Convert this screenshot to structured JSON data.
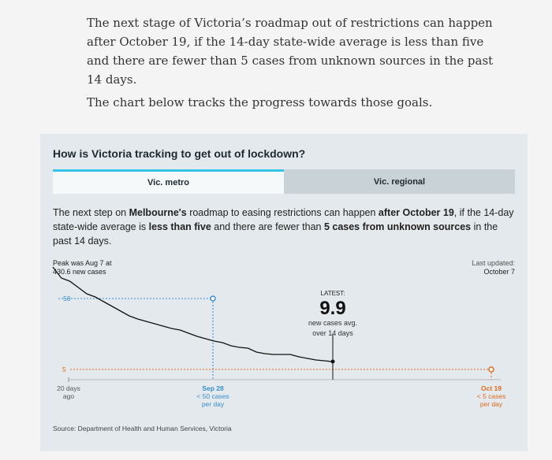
{
  "article": {
    "p1": "The next stage of Victoria’s roadmap out of restrictions can happen after October 19, if the 14-day state-wide average is less than five and there are fewer than 5 cases from unknown sources in the past 14 days.",
    "p2": "The chart below tracks the progress towards those goals."
  },
  "widget": {
    "title": "How is Victoria tracking to get out of lockdown?",
    "tabs": [
      {
        "label": "Vic. metro",
        "active": true
      },
      {
        "label": "Vic. regional",
        "active": false
      }
    ],
    "desc": {
      "t1": "The next step on ",
      "b1": "Melbourne's",
      "t2": " roadmap to easing restrictions can happen ",
      "b2": "after October 19",
      "t3": ", if the 14-day state-wide average is ",
      "b3": "less than five",
      "t4": " and there are fewer than ",
      "b4": "5 cases from unknown sources",
      "t5": " in the past 14 days."
    },
    "peak_note": [
      "Peak was Aug 7 at",
      "430.6 new cases"
    ],
    "updated_note": [
      "Last updated:",
      "October 7"
    ],
    "source": "Source: Department of Health and Human Services, Victoria",
    "colors": {
      "accent": "#35c3e8",
      "target50": "#3a8fd0",
      "target5": "#e06a1c",
      "line": "#111111"
    }
  },
  "chart_data": {
    "type": "line",
    "series": [
      {
        "values": [
          70,
          63,
          61,
          57,
          53,
          51,
          48,
          45,
          42,
          39,
          37,
          35.5,
          34,
          32.5,
          31,
          30,
          28,
          26,
          24.5,
          23,
          22,
          20,
          19,
          18.5,
          16,
          15,
          14.5,
          14.5,
          14.5,
          13,
          12,
          11,
          10.5,
          9.9
        ]
      }
    ],
    "latest": {
      "label": "LATEST:",
      "value": "9.9",
      "caption": [
        "new cases avg.",
        "over 14 days"
      ]
    },
    "targets": [
      {
        "value": 50,
        "label": "50",
        "date": "Sep 28",
        "caption": [
          "< 50 cases",
          "per day"
        ]
      },
      {
        "value": 5,
        "label": "5",
        "date": "Oct 19",
        "caption": [
          "< 5 cases",
          "per day"
        ]
      }
    ],
    "x_start_label": [
      "20 days",
      "ago"
    ]
  }
}
